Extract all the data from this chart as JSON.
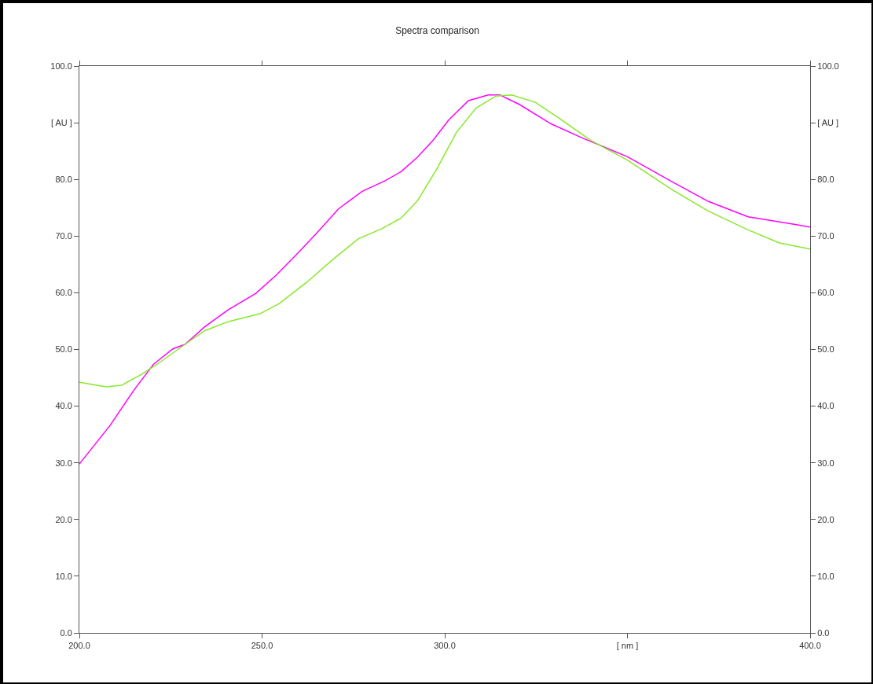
{
  "chart_data": {
    "type": "line",
    "title": "Spectra comparison",
    "series": [
      {
        "color": "#ff00ff",
        "x": [
          200,
          208.4,
          214.9,
          220.3,
          225.6,
          228.9,
          234.3,
          240.7,
          248.3,
          253.7,
          260.1,
          265.5,
          270.9,
          277.4,
          283.8,
          288.1,
          292.5,
          296.8,
          301.1,
          306.5,
          311.9,
          315.1,
          320.5,
          329.1,
          337.7,
          350,
          361.9,
          372.2,
          383,
          391.6,
          400
        ],
        "values": [
          29.8,
          36.6,
          42.8,
          47.4,
          50.1,
          50.9,
          54.0,
          57.0,
          59.9,
          63.0,
          67.2,
          70.9,
          74.8,
          77.9,
          79.8,
          81.4,
          83.9,
          86.9,
          90.5,
          93.9,
          94.9,
          94.9,
          93.2,
          89.8,
          87.3,
          84.0,
          79.7,
          76.1,
          73.4,
          72.5,
          71.6
        ]
      },
      {
        "color": "#88e82a",
        "x": [
          200,
          207.3,
          211.6,
          217,
          221.3,
          228.9,
          234.3,
          240.7,
          249.4,
          254.7,
          262.3,
          269.8,
          276.3,
          282.8,
          288.1,
          292.5,
          297.8,
          303.2,
          308.6,
          314,
          318.3,
          324.8,
          331.3,
          339.9,
          350,
          361.9,
          372.2,
          383,
          391.6,
          400
        ],
        "values": [
          44.2,
          43.4,
          43.7,
          45.6,
          47.4,
          50.9,
          53.3,
          54.9,
          56.3,
          58.1,
          61.9,
          66.1,
          69.5,
          71.3,
          73.2,
          76.2,
          81.8,
          88.3,
          92.6,
          94.7,
          94.9,
          93.6,
          90.8,
          86.9,
          83.4,
          78.3,
          74.4,
          71.1,
          68.8,
          67.7
        ]
      }
    ],
    "xlim": [
      200,
      400
    ],
    "xticks": [
      {
        "value": 200,
        "label": "200.0"
      },
      {
        "value": 250,
        "label": "250.0"
      },
      {
        "value": 300,
        "label": "300.0"
      },
      {
        "value": 350,
        "label": "[ nm ]"
      },
      {
        "value": 400,
        "label": "400.0"
      }
    ],
    "ylim": [
      0,
      100
    ],
    "yticks": [
      {
        "value": 0,
        "label": "0.0"
      },
      {
        "value": 10,
        "label": "10.0"
      },
      {
        "value": 20,
        "label": "20.0"
      },
      {
        "value": 30,
        "label": "30.0"
      },
      {
        "value": 40,
        "label": "40.0"
      },
      {
        "value": 50,
        "label": "50.0"
      },
      {
        "value": 60,
        "label": "60.0"
      },
      {
        "value": 70,
        "label": "70.0"
      },
      {
        "value": 80,
        "label": "80.0"
      },
      {
        "value": 90,
        "label": "[ AU ]"
      },
      {
        "value": 100,
        "label": "100.0"
      }
    ],
    "y2lim": [
      0,
      100
    ],
    "y2ticks": [
      {
        "value": 0,
        "label": "0.0"
      },
      {
        "value": 10,
        "label": "10.0"
      },
      {
        "value": 20,
        "label": "20.0"
      },
      {
        "value": 30,
        "label": "30.0"
      },
      {
        "value": 40,
        "label": "40.0"
      },
      {
        "value": 50,
        "label": "50.0"
      },
      {
        "value": 60,
        "label": "60.0"
      },
      {
        "value": 70,
        "label": "70.0"
      },
      {
        "value": 80,
        "label": "80.0"
      },
      {
        "value": 90,
        "label": "[ AU ]"
      },
      {
        "value": 100,
        "label": "100.0"
      }
    ],
    "grid": false,
    "marker": "none",
    "line_style": "solid"
  }
}
